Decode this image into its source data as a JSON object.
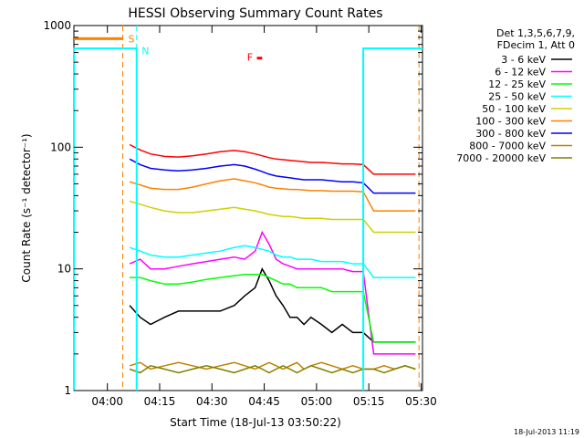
{
  "chart_data": {
    "type": "line",
    "title": "HESSI Observing Summary Count Rates",
    "xlabel": "Start Time (18-Jul-13 03:50:22)",
    "ylabel": "Count Rate (s⁻¹ detector⁻¹)",
    "yscale": "log",
    "ylim": [
      1,
      1000
    ],
    "x_unit": "minutes since 03:50:22",
    "xlim": [
      0,
      100
    ],
    "x_ticks": [
      {
        "label": "04:00",
        "value": 9.6
      },
      {
        "label": "04:15",
        "value": 24.6
      },
      {
        "label": "04:30",
        "value": 39.6
      },
      {
        "label": "04:45",
        "value": 54.6
      },
      {
        "label": "05:00",
        "value": 69.6
      },
      {
        "label": "05:15",
        "value": 84.6
      },
      {
        "label": "05:30",
        "value": 99.6
      }
    ],
    "y_ticks": [
      {
        "label": "1",
        "value": 1
      },
      {
        "label": "10",
        "value": 10
      },
      {
        "label": "100",
        "value": 100
      },
      {
        "label": "1000",
        "value": 1000
      }
    ],
    "legend_header": [
      "Det 1,3,5,6,7,9,",
      "FDecim 1, Att 0"
    ],
    "legend_position": "right",
    "timestamp": "18-Jul-2013 11:19",
    "flags": [
      {
        "label": "S",
        "color": "#ff8000"
      },
      {
        "label": "N",
        "color": "#00ffff"
      },
      {
        "label": "F",
        "color": "#ff0000"
      }
    ],
    "series": [
      {
        "name": "3 - 6 keV",
        "color": "#000000",
        "x": [
          16,
          19,
          22,
          26,
          30,
          34,
          38,
          42,
          46,
          49,
          52,
          54,
          56,
          58,
          60,
          62,
          64,
          66,
          68,
          71,
          74,
          77,
          80,
          83,
          86,
          89,
          92,
          95,
          98
        ],
        "y": [
          5,
          4,
          3.5,
          4,
          4.5,
          4.5,
          4.5,
          4.5,
          5,
          6,
          7,
          10,
          8,
          6,
          5,
          4,
          4,
          3.5,
          4,
          3.5,
          3,
          3.5,
          3,
          3,
          2.5,
          2.5,
          2.5,
          2.5,
          2.5
        ]
      },
      {
        "name": "6 - 12 keV",
        "color": "#ff00ff",
        "x": [
          16,
          19,
          22,
          26,
          30,
          34,
          38,
          42,
          46,
          49,
          52,
          54,
          56,
          58,
          60,
          62,
          64,
          66,
          68,
          71,
          74,
          77,
          80,
          83,
          86,
          89,
          92,
          95,
          98
        ],
        "y": [
          11,
          12,
          10,
          10,
          10.5,
          11,
          11.5,
          12,
          12.5,
          12,
          14,
          20,
          16,
          12,
          11,
          10.5,
          10,
          10,
          10,
          10,
          10,
          10,
          9.5,
          9.5,
          2,
          2,
          2,
          2,
          2
        ]
      },
      {
        "name": "12 - 25 keV",
        "color": "#00ff00",
        "x": [
          16,
          19,
          22,
          26,
          30,
          34,
          38,
          42,
          46,
          49,
          52,
          54,
          56,
          58,
          60,
          62,
          64,
          66,
          68,
          71,
          74,
          77,
          80,
          83,
          86,
          89,
          92,
          95,
          98
        ],
        "y": [
          8.5,
          8.5,
          8,
          7.5,
          7.5,
          7.8,
          8.2,
          8.5,
          8.8,
          9,
          9,
          9,
          8.5,
          8,
          7.5,
          7.5,
          7,
          7,
          7,
          7,
          6.5,
          6.5,
          6.5,
          6.5,
          2.5,
          2.5,
          2.5,
          2.5,
          2.5
        ]
      },
      {
        "name": "25 - 50 keV",
        "color": "#00ffff",
        "x": [
          16,
          19,
          22,
          26,
          30,
          34,
          38,
          42,
          46,
          49,
          52,
          54,
          56,
          58,
          60,
          62,
          64,
          66,
          68,
          71,
          74,
          77,
          80,
          83,
          86,
          89,
          92,
          95,
          98
        ],
        "y": [
          15,
          14,
          13,
          12.5,
          12.5,
          13,
          13.5,
          14,
          15,
          15.5,
          15,
          14.5,
          14,
          13,
          12.5,
          12.5,
          12,
          12,
          12,
          11.5,
          11.5,
          11.5,
          11,
          11,
          8.5,
          8.5,
          8.5,
          8.5,
          8.5
        ]
      },
      {
        "name": "50 - 100 keV",
        "color": "#d0d000",
        "x": [
          16,
          19,
          22,
          26,
          30,
          34,
          38,
          42,
          46,
          49,
          52,
          54,
          56,
          58,
          60,
          62,
          64,
          66,
          68,
          71,
          74,
          77,
          80,
          83,
          86,
          89,
          92,
          95,
          98
        ],
        "y": [
          36,
          34,
          32,
          30,
          29,
          29,
          30,
          31,
          32,
          31,
          30,
          29,
          28,
          27.5,
          27,
          27,
          26.5,
          26,
          26,
          26,
          25.5,
          25.5,
          25.5,
          25.5,
          20,
          20,
          20,
          20,
          20
        ]
      },
      {
        "name": "100 - 300 keV",
        "color": "#ff8000",
        "x": [
          16,
          19,
          22,
          26,
          30,
          34,
          38,
          42,
          46,
          49,
          52,
          54,
          56,
          58,
          60,
          62,
          64,
          66,
          68,
          71,
          74,
          77,
          80,
          83,
          86,
          89,
          92,
          95,
          98
        ],
        "y": [
          52,
          49,
          46,
          45,
          45,
          47,
          50,
          53,
          55,
          53,
          51,
          49,
          47,
          46,
          45.5,
          45,
          45,
          44.5,
          44,
          44,
          43.5,
          43.5,
          43.5,
          43,
          30,
          30,
          30,
          30,
          30
        ]
      },
      {
        "name": "300 - 800 keV",
        "color": "#0000ff",
        "x": [
          16,
          19,
          22,
          26,
          30,
          34,
          38,
          42,
          46,
          49,
          52,
          54,
          56,
          58,
          60,
          62,
          64,
          66,
          68,
          71,
          74,
          77,
          80,
          83,
          86,
          89,
          92,
          95,
          98
        ],
        "y": [
          80,
          72,
          67,
          65,
          64,
          65,
          67,
          70,
          72,
          70,
          66,
          63,
          60,
          58,
          57,
          56,
          55,
          54,
          54,
          54,
          53,
          52,
          52,
          51,
          42,
          42,
          42,
          42,
          42
        ]
      },
      {
        "name": "800 - 7000 keV",
        "color": "#c08000",
        "x": [
          16,
          19,
          22,
          26,
          30,
          34,
          38,
          42,
          46,
          49,
          52,
          54,
          56,
          58,
          60,
          62,
          64,
          66,
          68,
          71,
          74,
          77,
          80,
          83,
          86,
          89,
          92,
          95,
          98
        ],
        "y": [
          1.6,
          1.7,
          1.5,
          1.6,
          1.7,
          1.6,
          1.5,
          1.6,
          1.7,
          1.6,
          1.5,
          1.6,
          1.7,
          1.6,
          1.5,
          1.6,
          1.7,
          1.5,
          1.6,
          1.7,
          1.6,
          1.5,
          1.6,
          1.5,
          1.5,
          1.6,
          1.5,
          1.6,
          1.5
        ]
      },
      {
        "name": "7000 - 20000 keV",
        "color": "#808000",
        "x": [
          16,
          19,
          22,
          26,
          30,
          34,
          38,
          42,
          46,
          49,
          52,
          54,
          56,
          58,
          60,
          62,
          64,
          66,
          68,
          71,
          74,
          77,
          80,
          83,
          86,
          89,
          92,
          95,
          98
        ],
        "y": [
          1.5,
          1.4,
          1.6,
          1.5,
          1.4,
          1.5,
          1.6,
          1.5,
          1.4,
          1.5,
          1.6,
          1.5,
          1.4,
          1.5,
          1.6,
          1.5,
          1.4,
          1.5,
          1.6,
          1.5,
          1.4,
          1.5,
          1.4,
          1.5,
          1.5,
          1.4,
          1.5,
          1.6,
          1.5
        ]
      },
      {
        "name": "",
        "color": "#ff0000",
        "x": [
          16,
          19,
          22,
          26,
          30,
          34,
          38,
          42,
          46,
          49,
          52,
          54,
          56,
          58,
          60,
          62,
          64,
          66,
          68,
          71,
          74,
          77,
          80,
          83,
          86,
          89,
          92,
          95,
          98
        ],
        "y": [
          105,
          95,
          88,
          84,
          83,
          85,
          88,
          92,
          94,
          92,
          88,
          85,
          82,
          80,
          79,
          78,
          77,
          76,
          75,
          75,
          74,
          73,
          73,
          72,
          60,
          60,
          60,
          60,
          60
        ]
      }
    ]
  }
}
